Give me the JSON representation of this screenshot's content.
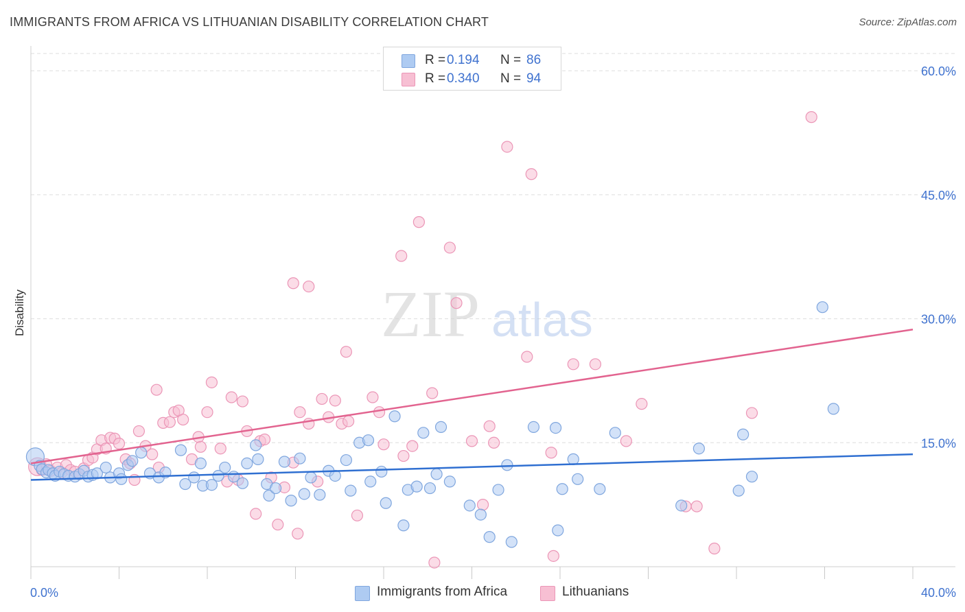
{
  "header": {
    "title": "IMMIGRANTS FROM AFRICA VS LITHUANIAN DISABILITY CORRELATION CHART",
    "source": "Source: ZipAtlas.com"
  },
  "watermark": {
    "zip": "ZIP",
    "atlas": "atlas"
  },
  "legend": {
    "rows": [
      {
        "r_label": "R =",
        "r_value": "0.194",
        "n_label": "N =",
        "n_value": "86"
      },
      {
        "r_label": "R =",
        "r_value": "0.340",
        "n_label": "N =",
        "n_value": "94"
      }
    ]
  },
  "bottom_legend": {
    "africa": "Immigrants from Africa",
    "lithuanians": "Lithuanians"
  },
  "colors": {
    "africa_fill": "#aecbf2",
    "africa_stroke": "#7fa6de",
    "africa_line": "#2f6fd1",
    "lith_fill": "#f7bfd3",
    "lith_stroke": "#eb95b6",
    "lith_line": "#e2638f",
    "tick_text": "#3f72cf",
    "grid": "#dedede"
  },
  "chart_data": {
    "type": "scatter",
    "title": "IMMIGRANTS FROM AFRICA VS LITHUANIAN DISABILITY CORRELATION CHART",
    "xlabel": "",
    "ylabel": "Disability",
    "x_ticks": [
      "0.0%",
      "40.0%"
    ],
    "y_ticks": [
      "15.0%",
      "30.0%",
      "45.0%",
      "60.0%"
    ],
    "xlim": [
      0,
      40
    ],
    "ylim": [
      0,
      63
    ],
    "grid": true,
    "legend_position": "top-center",
    "series": [
      {
        "name": "Immigrants from Africa",
        "r": 0.194,
        "n": 86,
        "trend": [
          [
            0,
            10.5
          ],
          [
            40,
            13.6
          ]
        ],
        "points": [
          [
            0.2,
            13.3
          ],
          [
            0.4,
            12.2
          ],
          [
            0.5,
            11.8
          ],
          [
            0.7,
            11.4
          ],
          [
            0.8,
            11.7
          ],
          [
            1.0,
            11.3
          ],
          [
            1.1,
            11.0
          ],
          [
            1.3,
            11.5
          ],
          [
            1.5,
            11.2
          ],
          [
            1.7,
            11.0
          ],
          [
            2.0,
            10.9
          ],
          [
            2.2,
            11.2
          ],
          [
            2.4,
            11.6
          ],
          [
            2.6,
            10.9
          ],
          [
            2.8,
            11.1
          ],
          [
            3.0,
            11.3
          ],
          [
            3.4,
            12.0
          ],
          [
            3.6,
            10.8
          ],
          [
            4.0,
            11.3
          ],
          [
            4.1,
            10.6
          ],
          [
            4.4,
            12.3
          ],
          [
            4.6,
            12.8
          ],
          [
            5.0,
            13.8
          ],
          [
            5.4,
            11.3
          ],
          [
            5.8,
            10.8
          ],
          [
            6.1,
            11.4
          ],
          [
            6.8,
            14.1
          ],
          [
            7.0,
            10.0
          ],
          [
            7.4,
            10.8
          ],
          [
            7.7,
            12.5
          ],
          [
            7.8,
            9.8
          ],
          [
            8.2,
            9.9
          ],
          [
            8.5,
            11.0
          ],
          [
            8.8,
            12.0
          ],
          [
            9.2,
            10.9
          ],
          [
            9.6,
            10.1
          ],
          [
            9.8,
            12.5
          ],
          [
            10.2,
            14.7
          ],
          [
            10.3,
            13.0
          ],
          [
            10.7,
            10.0
          ],
          [
            10.8,
            8.6
          ],
          [
            11.1,
            9.5
          ],
          [
            11.5,
            12.7
          ],
          [
            11.8,
            8.0
          ],
          [
            12.2,
            13.1
          ],
          [
            12.4,
            8.8
          ],
          [
            12.7,
            10.8
          ],
          [
            13.1,
            8.7
          ],
          [
            13.5,
            11.6
          ],
          [
            13.8,
            11.0
          ],
          [
            14.3,
            12.9
          ],
          [
            14.5,
            9.2
          ],
          [
            14.9,
            15.0
          ],
          [
            15.3,
            15.3
          ],
          [
            15.4,
            10.3
          ],
          [
            15.9,
            11.5
          ],
          [
            16.1,
            7.7
          ],
          [
            16.5,
            18.2
          ],
          [
            16.9,
            5.0
          ],
          [
            17.1,
            9.3
          ],
          [
            17.5,
            9.7
          ],
          [
            17.8,
            16.2
          ],
          [
            18.1,
            9.5
          ],
          [
            18.4,
            11.2
          ],
          [
            18.6,
            16.9
          ],
          [
            19.0,
            10.3
          ],
          [
            19.9,
            7.4
          ],
          [
            20.4,
            6.3
          ],
          [
            20.8,
            3.6
          ],
          [
            21.2,
            9.3
          ],
          [
            21.6,
            12.3
          ],
          [
            21.8,
            3.0
          ],
          [
            22.8,
            16.9
          ],
          [
            23.8,
            16.8
          ],
          [
            23.9,
            4.4
          ],
          [
            24.1,
            9.4
          ],
          [
            24.6,
            13.0
          ],
          [
            24.8,
            10.6
          ],
          [
            25.8,
            9.4
          ],
          [
            26.5,
            16.2
          ],
          [
            29.5,
            7.4
          ],
          [
            30.3,
            14.3
          ],
          [
            32.1,
            9.2
          ],
          [
            32.3,
            16.0
          ],
          [
            32.7,
            10.9
          ],
          [
            35.9,
            31.4
          ],
          [
            36.4,
            19.1
          ]
        ]
      },
      {
        "name": "Lithuanians",
        "r": 0.34,
        "n": 94,
        "trend": [
          [
            0,
            12.5
          ],
          [
            40,
            28.7
          ]
        ],
        "points": [
          [
            0.3,
            12.1
          ],
          [
            0.5,
            11.7
          ],
          [
            0.7,
            12.4
          ],
          [
            0.9,
            11.6
          ],
          [
            1.2,
            12.0
          ],
          [
            1.4,
            11.4
          ],
          [
            1.6,
            12.3
          ],
          [
            1.8,
            11.7
          ],
          [
            2.0,
            11.5
          ],
          [
            2.2,
            11.2
          ],
          [
            2.4,
            11.9
          ],
          [
            2.6,
            12.9
          ],
          [
            2.8,
            13.2
          ],
          [
            3.0,
            14.2
          ],
          [
            3.2,
            15.3
          ],
          [
            3.4,
            14.3
          ],
          [
            3.6,
            15.6
          ],
          [
            3.8,
            15.5
          ],
          [
            4.0,
            14.9
          ],
          [
            4.3,
            13.0
          ],
          [
            4.5,
            12.5
          ],
          [
            4.7,
            10.5
          ],
          [
            4.9,
            16.4
          ],
          [
            5.2,
            14.6
          ],
          [
            5.5,
            13.6
          ],
          [
            5.8,
            12.0
          ],
          [
            5.7,
            21.4
          ],
          [
            6.0,
            17.4
          ],
          [
            6.3,
            17.5
          ],
          [
            6.5,
            18.7
          ],
          [
            6.7,
            18.9
          ],
          [
            6.9,
            17.8
          ],
          [
            7.3,
            13.0
          ],
          [
            7.6,
            15.7
          ],
          [
            7.7,
            14.5
          ],
          [
            8.0,
            18.7
          ],
          [
            8.2,
            22.3
          ],
          [
            8.6,
            14.3
          ],
          [
            8.9,
            10.3
          ],
          [
            9.1,
            20.5
          ],
          [
            9.4,
            10.5
          ],
          [
            9.6,
            20.0
          ],
          [
            9.8,
            16.4
          ],
          [
            10.2,
            6.4
          ],
          [
            10.4,
            15.2
          ],
          [
            10.6,
            15.4
          ],
          [
            10.9,
            10.8
          ],
          [
            11.2,
            5.1
          ],
          [
            11.5,
            9.6
          ],
          [
            11.9,
            34.3
          ],
          [
            11.9,
            12.6
          ],
          [
            12.1,
            4.0
          ],
          [
            12.2,
            18.7
          ],
          [
            12.6,
            33.9
          ],
          [
            12.6,
            17.3
          ],
          [
            13.0,
            10.3
          ],
          [
            13.2,
            20.3
          ],
          [
            13.5,
            18.1
          ],
          [
            13.8,
            20.1
          ],
          [
            14.1,
            17.3
          ],
          [
            14.3,
            26.0
          ],
          [
            14.4,
            17.6
          ],
          [
            14.8,
            6.2
          ],
          [
            15.5,
            20.5
          ],
          [
            15.8,
            18.7
          ],
          [
            16.0,
            14.8
          ],
          [
            16.8,
            37.6
          ],
          [
            16.9,
            13.4
          ],
          [
            17.3,
            14.6
          ],
          [
            17.6,
            41.7
          ],
          [
            18.2,
            21.0
          ],
          [
            18.3,
            0.5
          ],
          [
            19.0,
            38.6
          ],
          [
            19.3,
            31.9
          ],
          [
            20.0,
            15.2
          ],
          [
            20.5,
            7.5
          ],
          [
            20.8,
            17.0
          ],
          [
            21.0,
            15.0
          ],
          [
            21.6,
            50.8
          ],
          [
            22.5,
            25.4
          ],
          [
            22.7,
            47.5
          ],
          [
            23.6,
            13.8
          ],
          [
            23.7,
            1.3
          ],
          [
            24.6,
            24.5
          ],
          [
            25.6,
            24.5
          ],
          [
            27.0,
            15.2
          ],
          [
            27.7,
            19.7
          ],
          [
            29.7,
            7.3
          ],
          [
            30.2,
            7.3
          ],
          [
            31.0,
            2.2
          ],
          [
            32.7,
            18.6
          ],
          [
            35.4,
            54.4
          ]
        ]
      }
    ]
  }
}
